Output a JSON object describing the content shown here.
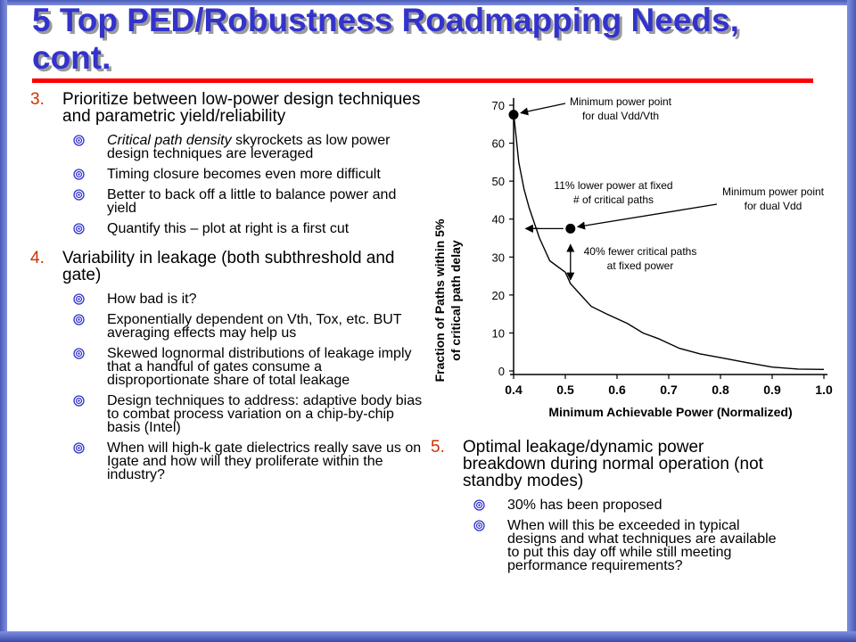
{
  "slide": {
    "title": "5 Top PED/Robustness Roadmapping Needs, cont."
  },
  "left_column": {
    "items": [
      {
        "number": "3.",
        "text": "Prioritize between low-power design techniques and parametric yield/reliability",
        "bullets": [
          {
            "italic": "Critical path density",
            "text": " skyrockets as low power design techniques are leveraged"
          },
          {
            "italic": "",
            "text": "Timing closure becomes even more difficult"
          },
          {
            "italic": "",
            "text": "Better to back off a little to balance power and yield"
          },
          {
            "italic": "",
            "text": "Quantify this – plot at right is a first cut"
          }
        ]
      },
      {
        "number": "4.",
        "text": "Variability in leakage (both subthreshold and gate)",
        "bullets": [
          {
            "italic": "",
            "text": "How bad is it?"
          },
          {
            "italic": "",
            "text": "Exponentially dependent on Vth, Tox, etc. BUT averaging effects may help us"
          },
          {
            "italic": "",
            "text": "Skewed lognormal distributions of leakage imply that a handful of gates consume a disproportionate share of total leakage"
          },
          {
            "italic": "",
            "text": "Design techniques to address: adaptive body bias to combat process variation on a chip-by-chip basis (Intel)"
          },
          {
            "italic": "",
            "text": "When will high-k gate dielectrics really save us on Igate and how will they proliferate within the industry?"
          }
        ]
      }
    ]
  },
  "right_column": {
    "item": {
      "number": "5.",
      "text": "Optimal leakage/dynamic power breakdown during normal operation (not standby modes)",
      "bullets": [
        {
          "italic": "",
          "text": "30% has been proposed"
        },
        {
          "italic": "",
          "text": "When will this be exceeded in typical designs and what techniques are available to put this day off while still meeting performance requirements?"
        }
      ]
    }
  },
  "colors": {
    "title": "#3333cc",
    "title_rule": "#ff0000",
    "number": "#cc3300",
    "bullet": "#3333cc",
    "frame": "#4a5bb8"
  },
  "chart_data": {
    "type": "line",
    "xlabel": "Minimum Achievable Power (Normalized)",
    "ylabel_line1": "Fraction of Paths within 5%",
    "ylabel_line2": "of critical path delay",
    "xlim": [
      0.4,
      1.0
    ],
    "ylim": [
      0,
      70
    ],
    "xticks": [
      "0.4",
      "0.5",
      "0.6",
      "0.7",
      "0.8",
      "0.9",
      "1.0"
    ],
    "yticks": [
      "0",
      "10",
      "20",
      "30",
      "40",
      "50",
      "60",
      "70"
    ],
    "series": [
      {
        "x": [
          0.4,
          0.41,
          0.42,
          0.43,
          0.45,
          0.47,
          0.5,
          0.51,
          0.53,
          0.55,
          0.58,
          0.62,
          0.65,
          0.68,
          0.72,
          0.76,
          0.8,
          0.85,
          0.9,
          0.95,
          1.0
        ],
        "y": [
          68,
          55,
          48,
          43,
          35,
          29,
          26,
          23,
          20,
          17,
          15,
          12.5,
          10,
          8.5,
          6,
          4.5,
          3.5,
          2.2,
          1,
          0.5,
          0.4
        ]
      }
    ],
    "points": [
      {
        "x": 0.4,
        "y": 67.5
      },
      {
        "x": 0.51,
        "y": 37.5
      }
    ],
    "annotations": [
      {
        "line1": "Minimum power point",
        "line2": "for dual Vdd/Vth"
      },
      {
        "line1": "11% lower power at fixed",
        "line2": "# of critical paths"
      },
      {
        "line1": "Minimum power point",
        "line2": "for dual Vdd"
      },
      {
        "line1": "40% fewer critical paths",
        "line2": "at fixed power"
      }
    ]
  }
}
